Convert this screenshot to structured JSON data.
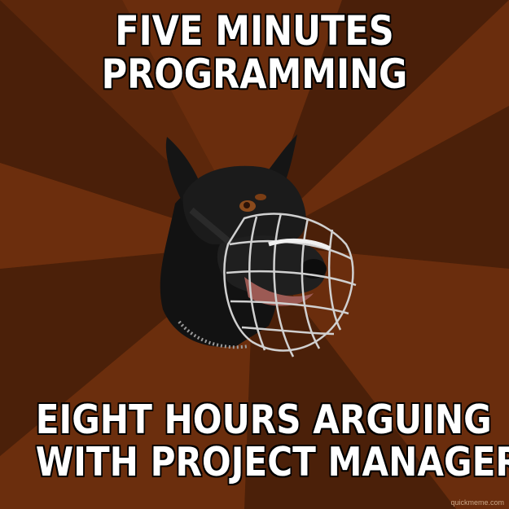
{
  "meme": {
    "top_text": [
      "FIVE MINUTES",
      "PROGRAMMING"
    ],
    "bottom_text": [
      "EIGHT HOURS ARGUING",
      "WITH PROJECT MANAGERS"
    ],
    "watermark": "quickmeme.com"
  },
  "colors": {
    "ray_dark": "#4a200a",
    "ray_light": "#6e2f0d",
    "text": "#ffffff",
    "outline": "#000000"
  },
  "icons": {
    "image": "doberman-with-wire-muzzle"
  }
}
